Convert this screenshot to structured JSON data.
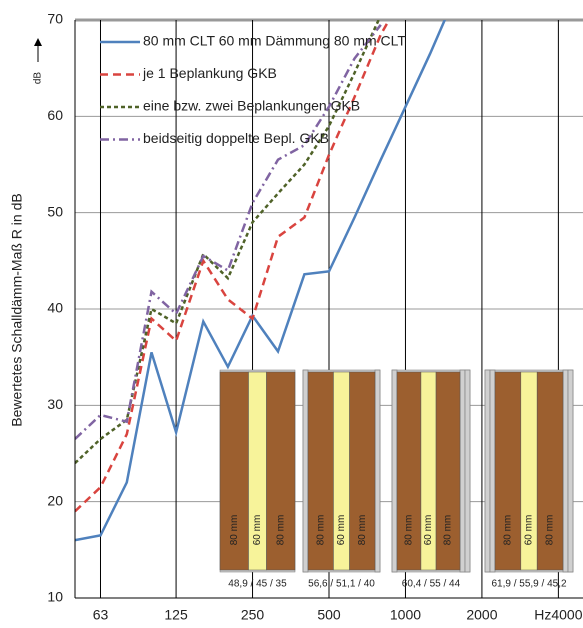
{
  "chart_data": {
    "type": "line",
    "y_label": "Bewertetes Schalldämm-Maß R in dB",
    "y_unit": "dB",
    "x": [
      50,
      63,
      80,
      100,
      125,
      160,
      200,
      250,
      315,
      400,
      500,
      630,
      800,
      1000,
      1250,
      1600
    ],
    "xlim": [
      50,
      5000
    ],
    "xticks": [
      63,
      125,
      250,
      500,
      1000,
      2000,
      {
        "value": 4000,
        "label": "Hz4000"
      }
    ],
    "x_log": true,
    "ylim": [
      10,
      70
    ],
    "yticks": [
      10,
      20,
      30,
      40,
      50,
      60,
      70
    ],
    "grid": true,
    "legend": "top-left",
    "series": [
      {
        "name": "80 mm CLT  60 mm Dämmung 80 mm CLT",
        "color": "#4f81bd",
        "style": "solid",
        "values": [
          16,
          16.5,
          22,
          35.5,
          27.2,
          38.7,
          34,
          39.3,
          35.6,
          43.6,
          43.9,
          49.5,
          55.5,
          61,
          66.5,
          73
        ]
      },
      {
        "name": "je 1 Beplankung GKB",
        "color": "#d9443f",
        "style": "dashed",
        "values": [
          19,
          21.5,
          27,
          39,
          36.7,
          45,
          41,
          39,
          47.5,
          49.5,
          56,
          62,
          68.5,
          73,
          null,
          null
        ]
      },
      {
        "name": "eine bzw. zwei Beplankungen GKB",
        "color": "#4f6228",
        "style": "dotted",
        "values": [
          24,
          26.5,
          28.5,
          40,
          38.5,
          45.7,
          43.2,
          49,
          52,
          55,
          59,
          64.5,
          70.5,
          null,
          null,
          null
        ]
      },
      {
        "name": "beidseitig doppelte Bepl. GKB",
        "color": "#8064a2",
        "style": "dashdot",
        "values": [
          26.5,
          29,
          28.3,
          41.8,
          39.5,
          45.5,
          44,
          51,
          55.5,
          57,
          61,
          66,
          69.5,
          null,
          null,
          null
        ]
      }
    ],
    "panels": [
      {
        "layers": [
          "80 mm",
          "60 mm",
          "80 mm"
        ],
        "caption": "48,9 / 45 / 35"
      },
      {
        "layers": [
          "80 mm",
          "60 mm",
          "80 mm"
        ],
        "caption": "56,6 / 51,1 / 40"
      },
      {
        "layers": [
          "80 mm",
          "60 mm",
          "80 mm"
        ],
        "caption": "60,4 / 55 / 44"
      },
      {
        "layers": [
          "80 mm",
          "60 mm",
          "80 mm"
        ],
        "caption": "61,9 / 55,9 / 45,2"
      }
    ]
  }
}
